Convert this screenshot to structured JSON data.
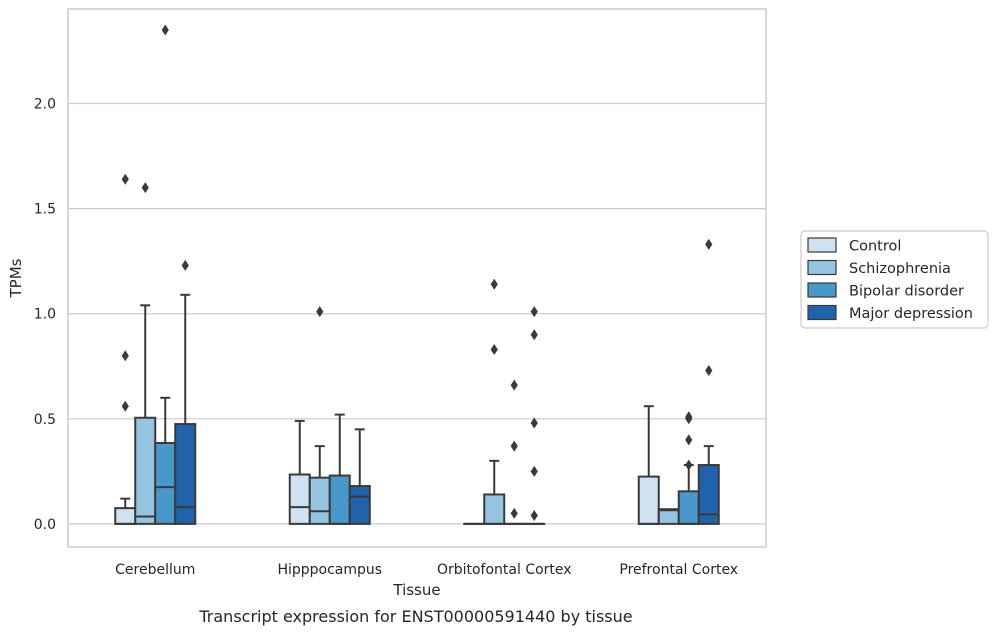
{
  "caption": "Transcript expression for ENST00000591440 by tissue",
  "chart_data": {
    "type": "box",
    "xlabel": "Tissue",
    "ylabel": "TPMs",
    "ylim": [
      -0.11,
      2.45
    ],
    "yticks": [
      0.0,
      0.5,
      1.0,
      1.5,
      2.0
    ],
    "ytick_labels": [
      "0.0",
      "0.5",
      "1.0",
      "1.5",
      "2.0"
    ],
    "grid": "horizontal",
    "legend_position": "right",
    "categories": [
      "Cerebellum",
      "Hipppocampus",
      "Orbitofontal Cortex",
      "Prefrontal Cortex"
    ],
    "series": [
      {
        "name": "Control",
        "color": "#d0e1f2",
        "boxes": [
          {
            "q1": 0.0,
            "median": 0.0,
            "q3": 0.075,
            "whislo": 0.0,
            "whishi": 0.12,
            "fliers": [
              1.64,
              0.8,
              0.56
            ]
          },
          {
            "q1": 0.0,
            "median": 0.08,
            "q3": 0.235,
            "whislo": 0.0,
            "whishi": 0.49,
            "fliers": []
          },
          {
            "q1": 0.0,
            "median": 0.0,
            "q3": 0.0,
            "whislo": 0.0,
            "whishi": 0.0,
            "fliers": []
          },
          {
            "q1": 0.0,
            "median": 0.0,
            "q3": 0.225,
            "whislo": 0.0,
            "whishi": 0.56,
            "fliers": []
          }
        ]
      },
      {
        "name": "Schizophrenia",
        "color": "#94c4df",
        "boxes": [
          {
            "q1": 0.0,
            "median": 0.035,
            "q3": 0.505,
            "whislo": 0.0,
            "whishi": 1.04,
            "fliers": [
              1.6
            ]
          },
          {
            "q1": 0.0,
            "median": 0.06,
            "q3": 0.22,
            "whislo": 0.0,
            "whishi": 0.37,
            "fliers": [
              1.01
            ]
          },
          {
            "q1": 0.0,
            "median": 0.0,
            "q3": 0.14,
            "whislo": 0.0,
            "whishi": 0.3,
            "fliers": [
              1.14,
              0.83
            ]
          },
          {
            "q1": 0.0,
            "median": 0.065,
            "q3": 0.07,
            "whislo": 0.0,
            "whishi": 0.07,
            "fliers": []
          }
        ]
      },
      {
        "name": "Bipolar disorder",
        "color": "#4a98c9",
        "boxes": [
          {
            "q1": 0.0,
            "median": 0.175,
            "q3": 0.385,
            "whislo": 0.0,
            "whishi": 0.6,
            "fliers": [
              2.35
            ]
          },
          {
            "q1": 0.0,
            "median": 0.0,
            "q3": 0.23,
            "whislo": 0.0,
            "whishi": 0.52,
            "fliers": []
          },
          {
            "q1": 0.0,
            "median": 0.0,
            "q3": 0.0,
            "whislo": 0.0,
            "whishi": 0.0,
            "fliers": [
              0.66,
              0.37,
              0.05
            ]
          },
          {
            "q1": 0.0,
            "median": 0.0,
            "q3": 0.155,
            "whislo": 0.0,
            "whishi": 0.28,
            "fliers": [
              0.5,
              0.4,
              0.28,
              0.51
            ]
          }
        ]
      },
      {
        "name": "Major depression",
        "color": "#2163aa",
        "boxes": [
          {
            "q1": 0.0,
            "median": 0.08,
            "q3": 0.475,
            "whislo": 0.0,
            "whishi": 1.09,
            "fliers": [
              1.23
            ]
          },
          {
            "q1": 0.0,
            "median": 0.13,
            "q3": 0.18,
            "whislo": 0.0,
            "whishi": 0.45,
            "fliers": []
          },
          {
            "q1": 0.0,
            "median": 0.0,
            "q3": 0.0,
            "whislo": 0.0,
            "whishi": 0.0,
            "fliers": [
              1.01,
              0.48,
              0.9,
              0.25,
              0.04
            ]
          },
          {
            "q1": 0.0,
            "median": 0.045,
            "q3": 0.28,
            "whislo": 0.0,
            "whishi": 0.37,
            "fliers": [
              1.33,
              0.73
            ]
          }
        ]
      }
    ]
  }
}
